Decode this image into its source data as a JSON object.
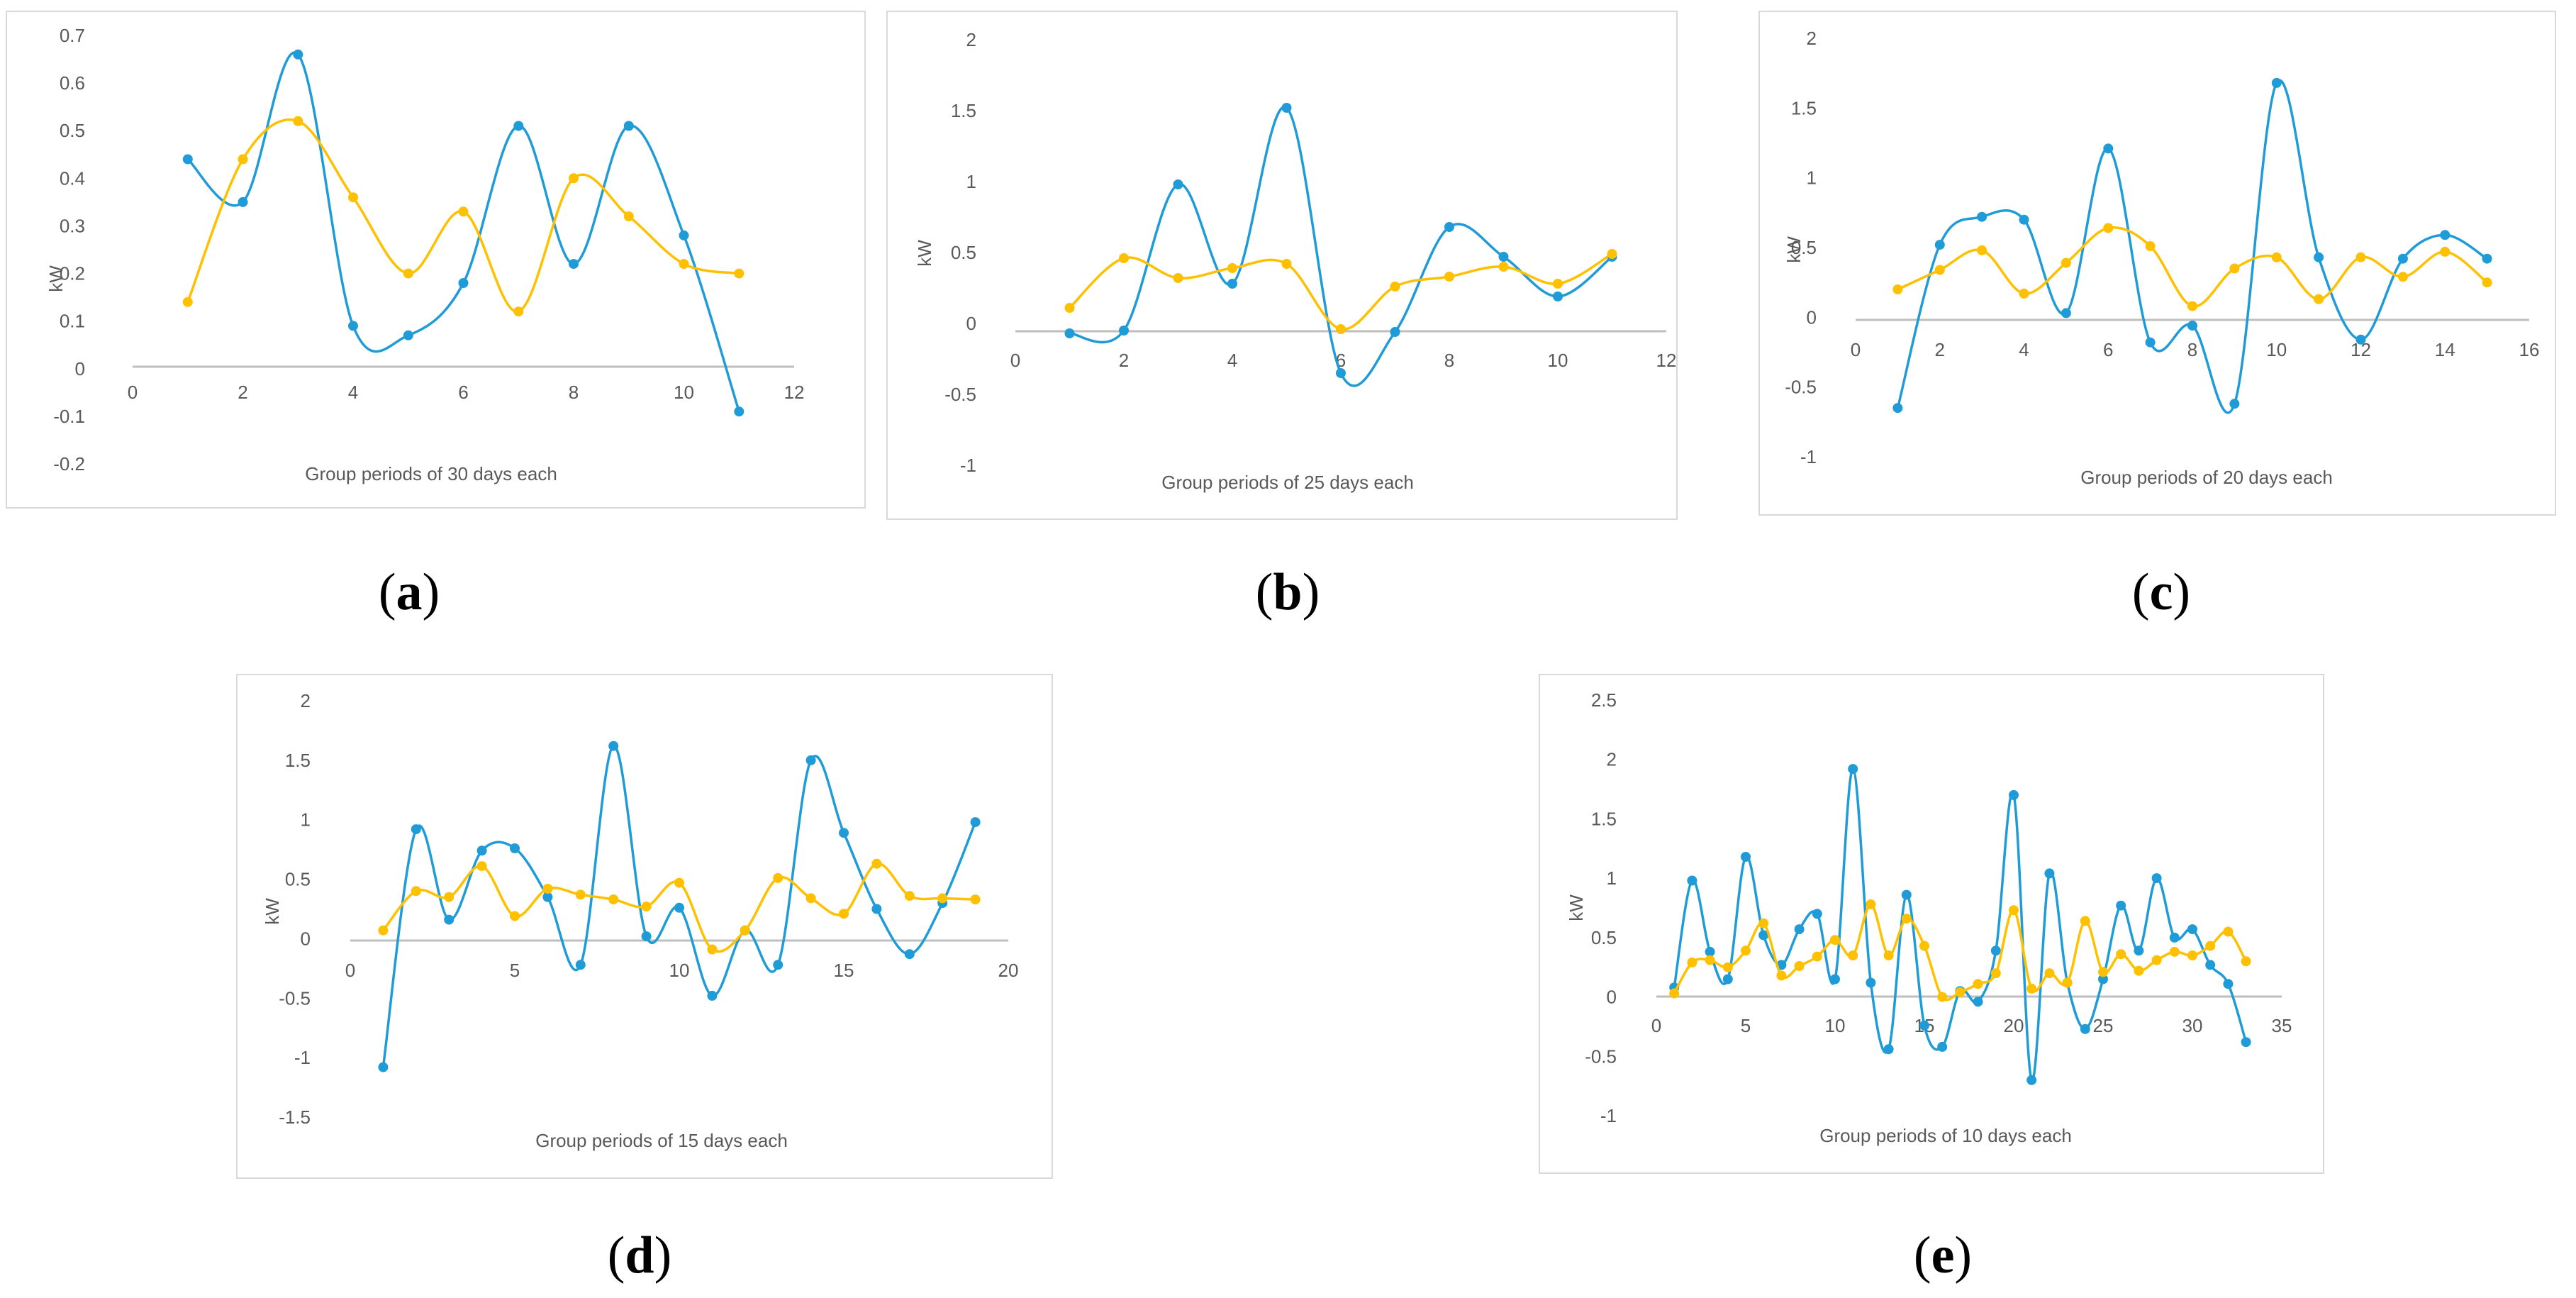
{
  "colors": {
    "blue": "#1f9bd7",
    "yellow": "#ffc000",
    "axis": "#bfbfbf",
    "tick_text": "#595959"
  },
  "captions": {
    "a": "a",
    "b": "b",
    "c": "c",
    "d": "d",
    "e": "e"
  },
  "chart_data": [
    {
      "id": "a",
      "type": "line",
      "xlabel": "Group periods of 30 days each",
      "ylabel": "kW",
      "xlim": [
        0,
        12
      ],
      "ylim": [
        -0.2,
        0.7
      ],
      "xticks": [
        0,
        2,
        4,
        6,
        8,
        10,
        12
      ],
      "xtick_labels": [
        "0",
        "2",
        "4",
        "6",
        "8",
        "10",
        "12"
      ],
      "yticks": [
        -0.2,
        -0.1,
        0,
        0.1,
        0.2,
        0.3,
        0.4,
        0.5,
        0.6,
        0.7
      ],
      "ytick_labels": [
        "-0.2",
        "-0.1",
        "0",
        "0.1",
        "0.2",
        "0.3",
        "0.4",
        "0.5",
        "0.6",
        "0.7"
      ],
      "series": [
        {
          "name": "blue",
          "x": [
            1,
            2,
            3,
            4,
            5,
            6,
            7,
            8,
            9,
            10,
            11
          ],
          "values": [
            0.44,
            0.35,
            0.66,
            0.09,
            0.07,
            0.18,
            0.51,
            0.22,
            0.51,
            0.28,
            -0.09
          ]
        },
        {
          "name": "yellow",
          "x": [
            1,
            2,
            3,
            4,
            5,
            6,
            7,
            8,
            9,
            10,
            11
          ],
          "values": [
            0.14,
            0.44,
            0.52,
            0.36,
            0.2,
            0.33,
            0.12,
            0.4,
            0.32,
            0.22,
            0.2
          ]
        }
      ]
    },
    {
      "id": "b",
      "type": "line",
      "xlabel": "Group periods of 25 days each",
      "ylabel": "kW",
      "xlim": [
        0,
        12
      ],
      "ylim": [
        -1,
        2
      ],
      "xticks": [
        0,
        2,
        4,
        6,
        8,
        10,
        12
      ],
      "xtick_labels": [
        "0",
        "2",
        "4",
        "6",
        "8",
        "10",
        "12"
      ],
      "yticks": [
        -1,
        -0.5,
        0,
        0.5,
        1,
        1.5,
        2
      ],
      "ytick_labels": [
        "-1",
        "-0.5",
        "0",
        "0.5",
        "1",
        "1.5",
        "2"
      ],
      "series": [
        {
          "name": "blue",
          "x": [
            1,
            2,
            3,
            4,
            5,
            6,
            7,
            8,
            9,
            10,
            11
          ],
          "values": [
            -0.07,
            -0.05,
            0.98,
            0.28,
            1.52,
            -0.35,
            -0.06,
            0.68,
            0.47,
            0.19,
            0.47
          ]
        },
        {
          "name": "yellow",
          "x": [
            1,
            2,
            3,
            4,
            5,
            6,
            7,
            8,
            9,
            10,
            11
          ],
          "values": [
            0.11,
            0.46,
            0.32,
            0.39,
            0.42,
            -0.04,
            0.26,
            0.33,
            0.4,
            0.28,
            0.49
          ]
        }
      ]
    },
    {
      "id": "c",
      "type": "line",
      "xlabel": "Group periods of 20 days each",
      "ylabel": "kW",
      "xlim": [
        0,
        16
      ],
      "ylim": [
        -1,
        2
      ],
      "xticks": [
        0,
        2,
        4,
        6,
        8,
        10,
        12,
        14,
        16
      ],
      "xtick_labels": [
        "0",
        "2",
        "4",
        "6",
        "8",
        "10",
        "12",
        "14",
        "16"
      ],
      "yticks": [
        -1,
        -0.5,
        0,
        0.5,
        1,
        1.5,
        2
      ],
      "ytick_labels": [
        "-1",
        "-0.5",
        "0",
        "0.5",
        "1",
        "1.5",
        "2"
      ],
      "series": [
        {
          "name": "blue",
          "x": [
            1,
            2,
            3,
            4,
            5,
            6,
            7,
            8,
            9,
            10,
            11,
            12,
            13,
            14,
            15
          ],
          "values": [
            -0.65,
            0.52,
            0.72,
            0.7,
            0.03,
            1.21,
            -0.18,
            -0.06,
            -0.62,
            1.68,
            0.43,
            -0.16,
            0.42,
            0.59,
            0.42
          ]
        },
        {
          "name": "yellow",
          "x": [
            1,
            2,
            3,
            4,
            5,
            6,
            7,
            8,
            9,
            10,
            11,
            12,
            13,
            14,
            15
          ],
          "values": [
            0.2,
            0.34,
            0.48,
            0.17,
            0.39,
            0.64,
            0.51,
            0.08,
            0.35,
            0.43,
            0.13,
            0.43,
            0.29,
            0.47,
            0.25
          ]
        }
      ]
    },
    {
      "id": "d",
      "type": "line",
      "xlabel": "Group periods of 15 days each",
      "ylabel": "kW",
      "xlim": [
        0,
        20
      ],
      "ylim": [
        -1.5,
        2
      ],
      "xticks": [
        0,
        5,
        10,
        15,
        20
      ],
      "xtick_labels": [
        "0",
        "5",
        "10",
        "15",
        "20"
      ],
      "yticks": [
        -1.5,
        -1,
        -0.5,
        0,
        0.5,
        1,
        1.5,
        2
      ],
      "ytick_labels": [
        "-1.5",
        "-1",
        "-0.5",
        "0",
        "0.5",
        "1",
        "1.5",
        "2"
      ],
      "series": [
        {
          "name": "blue",
          "x": [
            1,
            2,
            3,
            4,
            5,
            6,
            7,
            8,
            9,
            10,
            11,
            12,
            13,
            14,
            15,
            16,
            17,
            18,
            19
          ],
          "values": [
            -1.08,
            0.92,
            0.16,
            0.74,
            0.76,
            0.35,
            -0.22,
            1.62,
            0.02,
            0.26,
            -0.48,
            0.07,
            -0.22,
            1.5,
            0.89,
            0.25,
            -0.13,
            0.3,
            0.98
          ]
        },
        {
          "name": "yellow",
          "x": [
            1,
            2,
            3,
            4,
            5,
            6,
            7,
            8,
            9,
            10,
            11,
            12,
            13,
            14,
            15,
            16,
            17,
            18,
            19
          ],
          "values": [
            0.07,
            0.4,
            0.35,
            0.61,
            0.19,
            0.42,
            0.37,
            0.33,
            0.27,
            0.47,
            -0.09,
            0.07,
            0.51,
            0.34,
            0.21,
            0.63,
            0.36,
            0.34,
            0.33
          ]
        }
      ]
    },
    {
      "id": "e",
      "type": "line",
      "xlabel": "Group periods of 10 days each",
      "ylabel": "kW",
      "xlim": [
        0,
        35
      ],
      "ylim": [
        -1,
        2.5
      ],
      "xticks": [
        0,
        5,
        10,
        15,
        20,
        25,
        30,
        35
      ],
      "xtick_labels": [
        "0",
        "5",
        "10",
        "15",
        "20",
        "25",
        "30",
        "35"
      ],
      "yticks": [
        -1,
        -0.5,
        0,
        0.5,
        1,
        1.5,
        2,
        2.5
      ],
      "ytick_labels": [
        "-1",
        "-0.5",
        "0",
        "0.5",
        "1",
        "1.5",
        "2",
        "2.5"
      ],
      "series": [
        {
          "name": "blue",
          "x": [
            1,
            2,
            3,
            4,
            5,
            6,
            7,
            8,
            9,
            10,
            11,
            12,
            13,
            14,
            15,
            16,
            17,
            18,
            19,
            20,
            21,
            22,
            23,
            24,
            25,
            26,
            27,
            28,
            29,
            30,
            31,
            32,
            33
          ],
          "values": [
            0.08,
            0.98,
            0.38,
            0.15,
            1.18,
            0.52,
            0.27,
            0.57,
            0.7,
            0.15,
            1.92,
            0.12,
            -0.44,
            0.86,
            -0.24,
            -0.42,
            0.05,
            -0.04,
            0.39,
            1.7,
            -0.7,
            1.04,
            0.12,
            -0.27,
            0.15,
            0.77,
            0.39,
            1.0,
            0.5,
            0.57,
            0.27,
            0.11,
            -0.38
          ]
        },
        {
          "name": "yellow",
          "x": [
            1,
            2,
            3,
            4,
            5,
            6,
            7,
            8,
            9,
            10,
            11,
            12,
            13,
            14,
            15,
            16,
            17,
            18,
            19,
            20,
            21,
            22,
            23,
            24,
            25,
            26,
            27,
            28,
            29,
            30,
            31,
            32,
            33
          ],
          "values": [
            0.03,
            0.29,
            0.31,
            0.25,
            0.39,
            0.62,
            0.18,
            0.26,
            0.34,
            0.48,
            0.35,
            0.78,
            0.35,
            0.66,
            0.43,
            0.0,
            0.04,
            0.11,
            0.2,
            0.73,
            0.07,
            0.2,
            0.12,
            0.64,
            0.21,
            0.36,
            0.22,
            0.31,
            0.38,
            0.35,
            0.43,
            0.55,
            0.3
          ]
        }
      ]
    }
  ]
}
